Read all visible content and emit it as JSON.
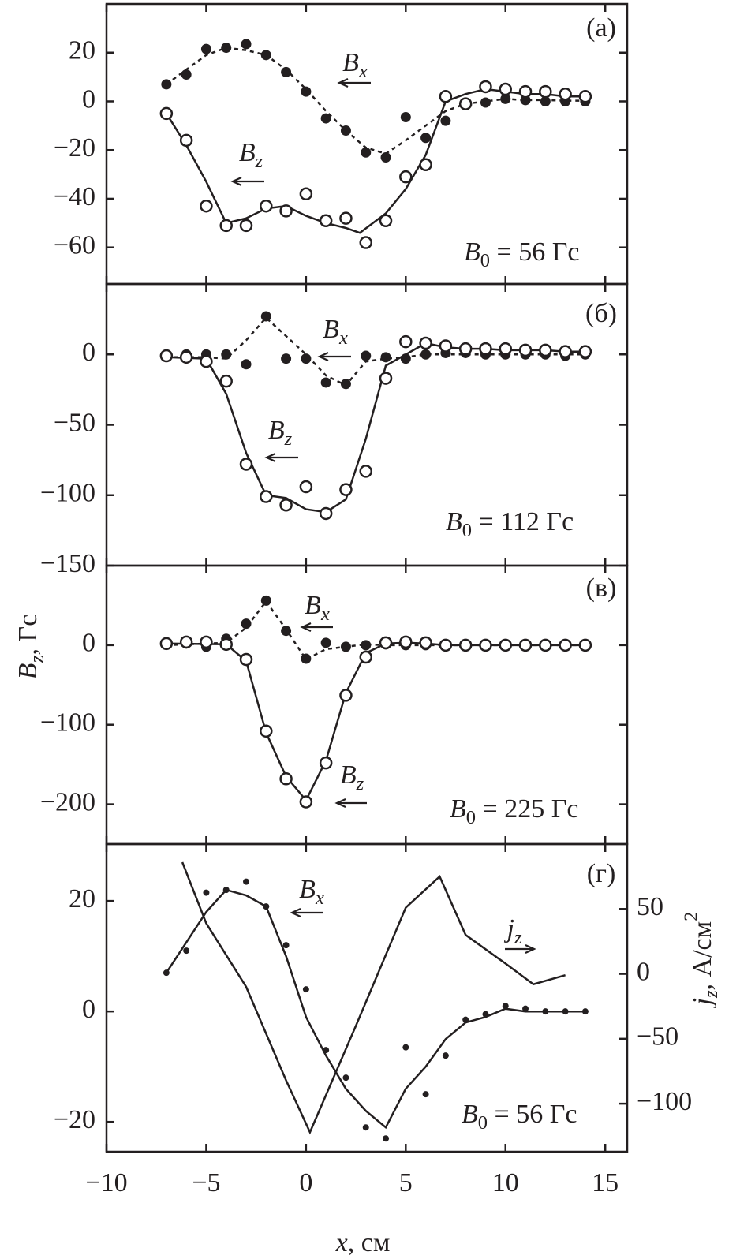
{
  "y_label": {
    "base": "B",
    "sub": "z",
    "rest": ", Гс"
  },
  "chart_data": [
    {
      "type": "scatter",
      "label": "(а)",
      "annotations": [
        {
          "base": "B",
          "sub": "x"
        },
        {
          "base": "B",
          "sub": "z"
        },
        {
          "base": "B",
          "sub": "0",
          "rest": " = 56 Гс"
        }
      ],
      "xlim": [
        -10,
        16.1
      ],
      "xticks": [
        -10,
        -5,
        0,
        5,
        10,
        15
      ],
      "ylim": [
        -75,
        40
      ],
      "yticks": [
        20,
        0,
        {
          "value": -20,
          "label": "−20"
        },
        {
          "value": -40,
          "label": "−40"
        },
        {
          "value": -60,
          "label": "−60"
        }
      ],
      "series": [
        {
          "kind": "points",
          "marker": "filled",
          "x": [
            -7,
            -6,
            -5,
            -4,
            -3,
            -2,
            -1,
            0,
            1,
            2,
            3,
            4,
            5,
            6,
            7,
            8,
            9,
            10,
            11,
            12,
            13,
            14
          ],
          "values": [
            7,
            11,
            21.5,
            22,
            23.5,
            19,
            12,
            4,
            -7,
            -12,
            -21,
            -23,
            -6.5,
            -15,
            -8,
            -1.5,
            -0.5,
            1,
            0.5,
            0,
            0,
            0
          ]
        },
        {
          "kind": "line",
          "dash": true,
          "x": [
            -7,
            -6,
            -5,
            -4,
            -3,
            -2,
            -1,
            0,
            1,
            2,
            3,
            4,
            5,
            6,
            7,
            8,
            9,
            10,
            11,
            12,
            13,
            14
          ],
          "values": [
            7,
            13,
            19,
            22,
            21,
            19,
            13,
            5,
            -4,
            -12,
            -19,
            -21.5,
            -16,
            -10,
            -4,
            -1,
            0,
            1,
            0.5,
            0.5,
            0.3,
            0.3
          ]
        },
        {
          "kind": "points",
          "marker": "open",
          "x": [
            -7,
            -6,
            -5,
            -4,
            -3,
            -2,
            -1,
            0,
            1,
            2,
            3,
            4,
            5,
            6,
            7,
            8,
            9,
            10,
            11,
            12,
            13,
            14
          ],
          "values": [
            -5,
            -16,
            -43,
            -51,
            -51,
            -43,
            -45,
            -38,
            -49,
            -48,
            -58,
            -49,
            -31,
            -26,
            2,
            -1,
            6,
            5,
            4,
            4,
            3,
            2
          ]
        },
        {
          "kind": "line",
          "dash": false,
          "x": [
            -7,
            -6,
            -5,
            -4,
            -3,
            -2,
            -1,
            0,
            1,
            2,
            2.7,
            4,
            5,
            6,
            7,
            8,
            9,
            10,
            11,
            12,
            13,
            14
          ],
          "values": [
            -5,
            -18,
            -33,
            -50,
            -48,
            -44,
            -43,
            -47,
            -50,
            -52,
            -54,
            -46,
            -36,
            -22,
            0,
            3,
            5,
            4,
            3,
            3,
            2,
            2
          ]
        }
      ]
    },
    {
      "type": "scatter",
      "label": "(б)",
      "annotations": [
        {
          "base": "B",
          "sub": "x"
        },
        {
          "base": "B",
          "sub": "z"
        },
        {
          "base": "B",
          "sub": "0",
          "rest": " = 112 Гс"
        }
      ],
      "xlim": [
        -10,
        16.1
      ],
      "xticks": [
        -10,
        -5,
        0,
        5,
        10,
        15
      ],
      "ylim": [
        -150,
        50
      ],
      "yticks": [
        0,
        {
          "value": -50,
          "label": "−50"
        },
        {
          "value": -100,
          "label": "−100"
        },
        {
          "value": -150,
          "label": "−150"
        }
      ],
      "series": [
        {
          "kind": "points",
          "marker": "filled",
          "x": [
            -7,
            -6,
            -5,
            -4,
            -3,
            -2,
            -1,
            0,
            1,
            2,
            3,
            4,
            5,
            6,
            7,
            8,
            9,
            10,
            11,
            12,
            13,
            14
          ],
          "values": [
            -1,
            0,
            0,
            0,
            -7,
            27,
            -3,
            -3,
            -20,
            -21,
            -1,
            -2,
            -3,
            0,
            1,
            1,
            0,
            0,
            0,
            0,
            -1,
            0
          ]
        },
        {
          "kind": "line",
          "dash": true,
          "x": [
            -7,
            -5,
            -4,
            -3,
            -2,
            -1,
            0,
            1,
            2,
            3,
            4,
            5,
            6,
            7,
            8,
            9,
            10,
            11,
            12,
            13,
            14
          ],
          "values": [
            -2,
            -2,
            -3,
            10,
            26,
            13,
            0,
            -15,
            -22,
            -5,
            -3,
            -2,
            0,
            0,
            0,
            0,
            0,
            0,
            0,
            0,
            0
          ]
        },
        {
          "kind": "points",
          "marker": "open",
          "x": [
            -7,
            -6,
            -5,
            -4,
            -3,
            -2,
            -1,
            0,
            1,
            2,
            3,
            4,
            5,
            6,
            7,
            8,
            9,
            10,
            11,
            12,
            13,
            14
          ],
          "values": [
            -1,
            -2,
            -5,
            -19,
            -78,
            -101,
            -107,
            -94,
            -113,
            -96,
            -83,
            -17,
            9,
            8,
            6,
            4,
            4,
            4,
            3,
            3,
            2,
            2
          ]
        },
        {
          "kind": "line",
          "dash": false,
          "x": [
            -7,
            -5,
            -4,
            -3,
            -2,
            -1,
            0,
            1,
            2,
            3,
            4,
            5,
            6,
            7,
            8,
            9,
            10,
            11,
            12,
            13,
            14
          ],
          "values": [
            -2,
            -3,
            -28,
            -70,
            -100,
            -102,
            -110,
            -112,
            -103,
            -60,
            -8,
            0,
            8,
            5,
            4,
            4,
            3,
            3,
            3,
            2,
            2
          ]
        }
      ]
    },
    {
      "type": "scatter",
      "label": "(в)",
      "annotations": [
        {
          "base": "B",
          "sub": "x"
        },
        {
          "base": "B",
          "sub": "z"
        },
        {
          "base": "B",
          "sub": "0",
          "rest": " = 225 Гс"
        }
      ],
      "xlim": [
        -10,
        16.1
      ],
      "xticks": [
        -10,
        -5,
        0,
        5,
        10,
        15
      ],
      "ylim": [
        -250,
        100
      ],
      "yticks": [
        0,
        {
          "value": -100,
          "label": "−100"
        },
        {
          "value": -200,
          "label": "−200"
        }
      ],
      "series": [
        {
          "kind": "points",
          "marker": "filled",
          "x": [
            -7,
            -6,
            -5,
            -4,
            -3,
            -2,
            -1,
            0,
            1,
            2,
            3,
            4,
            5,
            6,
            7,
            8,
            9,
            10,
            11,
            12,
            13,
            14
          ],
          "values": [
            1,
            2,
            -2,
            8,
            27,
            56,
            18,
            -17,
            3,
            -2,
            0,
            1,
            0,
            0,
            0,
            0,
            0,
            0,
            0,
            0,
            0,
            0
          ]
        },
        {
          "kind": "line",
          "dash": true,
          "x": [
            -7,
            -4,
            -3,
            -2,
            -1,
            0,
            1,
            2,
            3,
            4,
            5,
            6,
            7,
            8,
            9,
            10,
            11,
            12,
            13,
            14
          ],
          "values": [
            0,
            3,
            22,
            55,
            20,
            -18,
            -5,
            -2,
            1,
            0,
            0,
            0,
            0,
            0,
            0,
            0,
            0,
            0,
            0,
            0
          ]
        },
        {
          "kind": "points",
          "marker": "open",
          "x": [
            -7,
            -6,
            -5,
            -4,
            -3,
            -2,
            -1,
            0,
            1,
            2,
            3,
            4,
            5,
            6,
            7,
            8,
            9,
            10,
            11,
            12,
            13,
            14
          ],
          "values": [
            2,
            4,
            4,
            1,
            -18,
            -108,
            -168,
            -197,
            -148,
            -63,
            -15,
            3,
            4,
            3,
            0,
            0,
            0,
            0,
            0,
            0,
            0,
            0
          ]
        },
        {
          "kind": "line",
          "dash": false,
          "x": [
            -7,
            -4,
            -3,
            -2,
            -1,
            0,
            1,
            2,
            3,
            4,
            5,
            6,
            7,
            8,
            9,
            10,
            11,
            12,
            13,
            14
          ],
          "values": [
            2,
            1,
            -20,
            -110,
            -165,
            -195,
            -145,
            -60,
            -10,
            2,
            3,
            2,
            0,
            0,
            0,
            0,
            0,
            0,
            0,
            0
          ]
        }
      ]
    },
    {
      "type": "scatter",
      "label": "(г)",
      "annotations": [
        {
          "base": "B",
          "sub": "x"
        },
        {
          "base": "j",
          "sub": "z"
        },
        {
          "base": "B",
          "sub": "0",
          "rest": " = 56 Гс"
        }
      ],
      "xlabel": {
        "base": "x",
        "rest": ", см"
      },
      "y2label": {
        "base": "j",
        "sub": "z",
        "rest": ", А/см",
        "sup": "2"
      },
      "xlim": [
        -10,
        16.1
      ],
      "xticks": [
        {
          "value": -10,
          "label": "−10"
        },
        {
          "value": -5,
          "label": "−5"
        },
        0,
        5,
        10,
        15
      ],
      "ylim": [
        -25.4,
        30.3
      ],
      "yticks": [
        20,
        0,
        {
          "value": -20,
          "label": "−20"
        }
      ],
      "y2lim": [
        -137,
        100
      ],
      "y2ticks": [
        50,
        0,
        {
          "value": -50,
          "label": "−50"
        },
        {
          "value": -100,
          "label": "−100"
        }
      ],
      "series": [
        {
          "kind": "points",
          "marker": "dot",
          "x": [
            -7,
            -6,
            -5,
            -4,
            -3,
            -2,
            -1,
            0,
            1,
            2,
            3,
            4,
            5,
            6,
            7,
            8,
            9,
            10,
            11,
            12,
            13,
            14
          ],
          "values": [
            7,
            11,
            21.5,
            22,
            23.5,
            19,
            12,
            4,
            -7,
            -12,
            -21,
            -23,
            -6.5,
            -15,
            -8,
            -1.5,
            -0.5,
            1,
            0.5,
            0,
            0,
            0
          ]
        },
        {
          "kind": "line",
          "dash": false,
          "x": [
            -7,
            -5,
            -4,
            -3,
            -2,
            -1,
            0,
            1,
            2,
            3,
            4,
            5,
            6,
            7,
            8,
            9,
            10,
            11,
            12,
            13,
            14
          ],
          "values": [
            7,
            18,
            22,
            21,
            19,
            10,
            -1,
            -8,
            -14,
            -18,
            -21,
            -14,
            -10,
            -5,
            -2,
            -1,
            0.5,
            0,
            0,
            0,
            0
          ]
        },
        {
          "kind": "line",
          "dash": false,
          "axis": "y2",
          "x": [
            -6.2,
            -5,
            -3,
            -1,
            0.2,
            2.5,
            5,
            6.7,
            8,
            10,
            11.4,
            13
          ],
          "values": [
            86,
            39,
            -10,
            -82,
            -122,
            -40,
            51,
            75,
            30,
            8,
            -8,
            -1
          ]
        }
      ]
    }
  ]
}
